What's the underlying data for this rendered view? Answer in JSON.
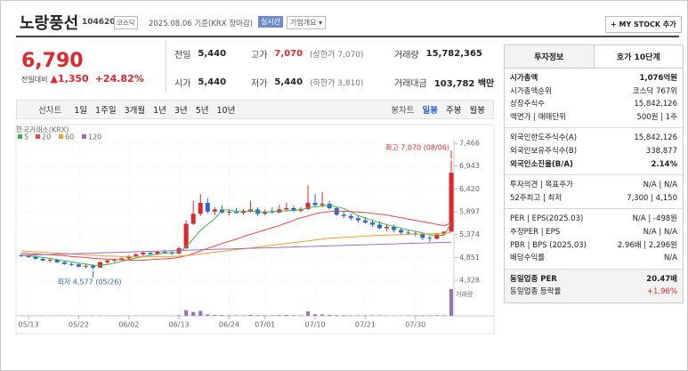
{
  "header": {
    "name": "노랑풍선",
    "code": "104620",
    "market": "코스닥",
    "date": "2025.08.06 기준(KRX 장마감)",
    "realtime": "실시간",
    "overview": "기업개요 ▾",
    "button": "+ MY STOCK 추가"
  },
  "quote": {
    "price": "6,790",
    "change_label": "전일대비",
    "change": "▲1,350",
    "change_rate": "+24.82%",
    "cells": [
      [
        "전일",
        "5,440"
      ],
      [
        "고가",
        "7,070",
        "(상한가 7,070)"
      ],
      [
        "거래량",
        "15,782,365"
      ],
      [
        "시가",
        "5,440"
      ],
      [
        "저가",
        "5,440",
        "(하한가 3,810)"
      ],
      [
        "거래대금",
        "103,782 백만"
      ]
    ]
  },
  "toolbar": {
    "line_label": "선차트",
    "line_periods": [
      "1일",
      "1주일",
      "3개월",
      "1년",
      "3년",
      "5년",
      "10년"
    ],
    "candle_label": "봉차트",
    "candle_periods": [
      "일봉",
      "주봉",
      "월봉"
    ]
  },
  "chart_data": {
    "type": "candlestick",
    "source": "한국거래소(KRX)",
    "grid": true,
    "categories": [
      null,
      "05/13",
      null,
      null,
      null,
      null,
      null,
      null,
      "05/22",
      null,
      null,
      null,
      null,
      null,
      null,
      "06/02",
      null,
      null,
      null,
      null,
      null,
      null,
      "06/13",
      null,
      null,
      null,
      null,
      null,
      null,
      "06/24",
      null,
      null,
      null,
      null,
      "07/01",
      null,
      null,
      null,
      null,
      null,
      null,
      "07/10",
      null,
      null,
      null,
      null,
      null,
      null,
      "07/21",
      null,
      null,
      null,
      null,
      null,
      null,
      "07/30",
      null,
      null,
      null,
      null,
      null
    ],
    "open": [
      4900,
      4880,
      4870,
      4820,
      4780,
      4800,
      4740,
      4700,
      4690,
      4640,
      4660,
      4620,
      4740,
      4780,
      4800,
      4830,
      4880,
      4920,
      4960,
      4930,
      4980,
      4970,
      4940,
      5060,
      5620,
      5850,
      6100,
      5900,
      5950,
      5880,
      5900,
      5870,
      5920,
      5950,
      5850,
      5900,
      5880,
      5950,
      5980,
      5920,
      5960,
      6100,
      6050,
      6080,
      5980,
      5830,
      5800,
      5750,
      5700,
      5650,
      5600,
      5520,
      5550,
      5480,
      5420,
      5400,
      5380,
      5300,
      5280,
      5380,
      5440
    ],
    "high": [
      4930,
      4900,
      4890,
      4850,
      4830,
      4820,
      4770,
      4740,
      4720,
      4700,
      4700,
      4760,
      4800,
      4830,
      4850,
      4900,
      4950,
      4990,
      5000,
      5010,
      5030,
      5000,
      5100,
      5700,
      6150,
      6300,
      6200,
      6000,
      6050,
      5950,
      5980,
      5960,
      6150,
      6000,
      5950,
      6000,
      6050,
      6100,
      6050,
      6000,
      6500,
      6300,
      6350,
      6150,
      6000,
      5900,
      5850,
      5800,
      5780,
      5700,
      5680,
      5600,
      5600,
      5520,
      5480,
      5450,
      5420,
      5350,
      5400,
      5450,
      7070
    ],
    "low": [
      4860,
      4840,
      4800,
      4760,
      4740,
      4720,
      4680,
      4650,
      4620,
      4600,
      4577,
      4610,
      4700,
      4740,
      4770,
      4800,
      4850,
      4880,
      4900,
      4900,
      4940,
      4900,
      4920,
      5040,
      5600,
      5800,
      5850,
      5820,
      5850,
      5820,
      5850,
      5830,
      5880,
      5800,
      5820,
      5850,
      5860,
      5900,
      5900,
      5880,
      5940,
      6000,
      6000,
      5950,
      5800,
      5750,
      5700,
      5650,
      5620,
      5550,
      5500,
      5450,
      5420,
      5380,
      5360,
      5330,
      5250,
      5200,
      5260,
      5360,
      5440
    ],
    "close": [
      4880,
      4870,
      4820,
      4780,
      4800,
      4740,
      4700,
      4690,
      4640,
      4660,
      4620,
      4740,
      4780,
      4800,
      4830,
      4880,
      4920,
      4960,
      4930,
      4980,
      4970,
      4940,
      5060,
      5620,
      5850,
      6100,
      5900,
      5950,
      5880,
      5900,
      5870,
      5920,
      5950,
      5850,
      5900,
      5880,
      5950,
      5980,
      5920,
      5960,
      6100,
      6050,
      6080,
      5980,
      5830,
      5800,
      5750,
      5700,
      5650,
      5600,
      5520,
      5550,
      5480,
      5420,
      5400,
      5380,
      5300,
      5280,
      5380,
      5440,
      6790
    ],
    "volume": [
      150000,
      120000,
      130000,
      140000,
      110000,
      160000,
      130000,
      120000,
      150000,
      140000,
      180000,
      200000,
      150000,
      130000,
      120000,
      140000,
      160000,
      150000,
      130000,
      140000,
      120000,
      130000,
      400000,
      3400000,
      2300000,
      2900000,
      900000,
      500000,
      400000,
      350000,
      300000,
      280000,
      600000,
      350000,
      300000,
      280000,
      400000,
      450000,
      350000,
      300000,
      2600000,
      900000,
      800000,
      500000,
      400000,
      350000,
      300000,
      280000,
      260000,
      300000,
      280000,
      250000,
      260000,
      240000,
      230000,
      250000,
      300000,
      280000,
      350000,
      300000,
      15782365
    ],
    "ylim": [
      4328,
      7466
    ],
    "yticks": [
      {
        "value": 4328,
        "label": "4,328"
      },
      {
        "value": 4851,
        "label": "4,851"
      },
      {
        "value": 5374,
        "label": "5,374"
      },
      {
        "value": 5897,
        "label": "5,897"
      },
      {
        "value": 6420,
        "label": "6,420"
      },
      {
        "value": 6943,
        "label": "6,943"
      },
      {
        "value": 7466,
        "label": "7,466"
      }
    ],
    "ma_series": [
      {
        "name": "5",
        "color": "#3cb44b",
        "values": [
          4900,
          4890,
          4870,
          4850,
          4830,
          4800,
          4770,
          4750,
          4720,
          4700,
          4670,
          4670,
          4690,
          4720,
          4760,
          4800,
          4840,
          4870,
          4900,
          4930,
          4950,
          4960,
          4960,
          5100,
          5280,
          5470,
          5610,
          5740,
          5940,
          5940,
          5900,
          5900,
          5910,
          5900,
          5890,
          5900,
          5910,
          5920,
          5930,
          5940,
          5990,
          6010,
          6030,
          6040,
          6010,
          5970,
          5890,
          5810,
          5750,
          5700,
          5650,
          5600,
          5560,
          5520,
          5480,
          5450,
          5410,
          5370,
          5350,
          5360,
          5640
        ]
      },
      {
        "name": "20",
        "color": "#e8474c",
        "values": [
          4950,
          4940,
          4930,
          4920,
          4910,
          4900,
          4890,
          4870,
          4860,
          4850,
          4830,
          4820,
          4810,
          4800,
          4800,
          4790,
          4790,
          4790,
          4800,
          4810,
          4820,
          4830,
          4850,
          4890,
          4940,
          5000,
          5060,
          5110,
          5170,
          5220,
          5270,
          5330,
          5380,
          5430,
          5480,
          5530,
          5580,
          5640,
          5700,
          5760,
          5800,
          5850,
          5880,
          5900,
          5910,
          5910,
          5900,
          5890,
          5880,
          5860,
          5840,
          5820,
          5790,
          5760,
          5730,
          5700,
          5670,
          5640,
          5610,
          5580,
          5640
        ]
      },
      {
        "name": "60",
        "color": "#f39c34",
        "values": [
          5000,
          4990,
          4980,
          4970,
          4960,
          4950,
          4940,
          4930,
          4920,
          4910,
          4900,
          4890,
          4880,
          4880,
          4870,
          4870,
          4870,
          4870,
          4870,
          4870,
          4870,
          4870,
          4880,
          4890,
          4910,
          4930,
          4950,
          4970,
          4990,
          5010,
          5030,
          5050,
          5070,
          5090,
          5110,
          5130,
          5150,
          5170,
          5190,
          5210,
          5230,
          5250,
          5270,
          5290,
          5300,
          5310,
          5320,
          5330,
          5340,
          5350,
          5360,
          5360,
          5370,
          5370,
          5380,
          5380,
          5390,
          5390,
          5400,
          5400,
          5420
        ]
      },
      {
        "name": "120",
        "color": "#9b6fc2",
        "values": [
          4900,
          4905,
          4910,
          4915,
          4920,
          4925,
          4930,
          4935,
          4940,
          4945,
          4950,
          4955,
          4960,
          4965,
          4970,
          4975,
          4980,
          4985,
          4990,
          4995,
          5000,
          5005,
          5010,
          5015,
          5020,
          5025,
          5030,
          5035,
          5040,
          5045,
          5050,
          5055,
          5060,
          5065,
          5070,
          5075,
          5080,
          5085,
          5090,
          5095,
          5100,
          5105,
          5110,
          5115,
          5120,
          5125,
          5130,
          5135,
          5140,
          5145,
          5150,
          5155,
          5160,
          5165,
          5170,
          5175,
          5180,
          5185,
          5190,
          5195,
          5200
        ]
      }
    ],
    "volume_color": "#9b6fc2",
    "up_color": "#e0262d",
    "down_color": "#2a67d3",
    "high_label": "최고 7,070 (08/06)",
    "low_label": "최저 4,577 (05/26)",
    "volume_label": "거래량"
  },
  "sidebar": {
    "tabs": [
      "투자정보",
      "호가 10단계"
    ],
    "groups": [
      [
        [
          "시가총액",
          "1,076억원"
        ],
        [
          "시가총액순위",
          "코스닥 767위"
        ],
        [
          "상장주식수",
          "15,842,126"
        ],
        [
          "액면가 | 매매단위",
          "500원 | 1주"
        ]
      ],
      [
        [
          "외국인한도주식수(A)",
          "15,842,126"
        ],
        [
          "외국인보유주식수(B)",
          "338,877"
        ],
        [
          "외국인소진율(B/A)",
          "2.14%"
        ]
      ],
      [
        [
          "투자의견 | 목표주가",
          "N/A | N/A"
        ],
        [
          "52주최고 | 최저",
          "7,300 | 4,150"
        ]
      ],
      [
        [
          "PER | EPS(2025.03)",
          "N/A | -498원"
        ],
        [
          "추정PER | EPS",
          "N/A | N/A"
        ],
        [
          "PBR | BPS (2025.03)",
          "2.96배 | 2,296원"
        ],
        [
          "배당수익률",
          "N/A"
        ]
      ],
      [
        [
          "동일업종 PER",
          "20.47배"
        ],
        [
          "동일업종 등락률",
          "+1.96%"
        ]
      ]
    ]
  }
}
